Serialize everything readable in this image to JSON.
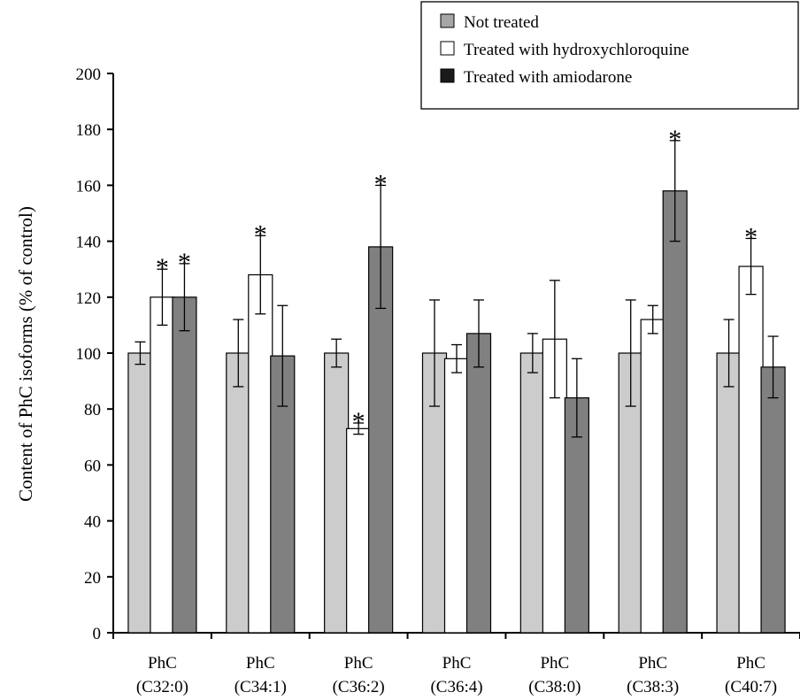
{
  "chart_data": {
    "type": "bar",
    "ylabel": "Content of PhC isoforms (% of control)",
    "ylim": [
      0,
      200
    ],
    "yticks": [
      0,
      20,
      40,
      60,
      80,
      100,
      120,
      140,
      160,
      180,
      200
    ],
    "grid": false,
    "legend_position": "top-right",
    "categories": [
      [
        "PhC",
        "(C32:0)"
      ],
      [
        "PhC",
        "(C34:1)"
      ],
      [
        "PhC",
        "(C36:2)"
      ],
      [
        "PhC",
        "(C36:4)"
      ],
      [
        "PhC",
        "(C38:0)"
      ],
      [
        "PhC",
        "(C38:3)"
      ],
      [
        "PhC",
        "(C40:7)"
      ]
    ],
    "significance_marker": "*",
    "series": [
      {
        "name": "Not treated",
        "color": "#cccccc",
        "legend_color": "#a6a6a6",
        "values": [
          100,
          100,
          100,
          100,
          100,
          100,
          100
        ],
        "errors": [
          4,
          12,
          5,
          19,
          7,
          19,
          12
        ],
        "significant": [
          false,
          false,
          false,
          false,
          false,
          false,
          false
        ]
      },
      {
        "name": "Treated with hydroxychloroquine",
        "color": "#ffffff",
        "legend_color": "#ffffff",
        "values": [
          120,
          128,
          73,
          98,
          105,
          112,
          131
        ],
        "errors": [
          10,
          14,
          2,
          5,
          21,
          5,
          10
        ],
        "significant": [
          true,
          true,
          true,
          false,
          false,
          false,
          true
        ]
      },
      {
        "name": "Treated with amiodarone",
        "color": "#808080",
        "legend_color": "#1a1a1a",
        "values": [
          120,
          99,
          138,
          107,
          84,
          158,
          95
        ],
        "errors": [
          12,
          18,
          22,
          12,
          14,
          18,
          11
        ],
        "significant": [
          true,
          false,
          true,
          false,
          false,
          true,
          false
        ]
      }
    ]
  }
}
